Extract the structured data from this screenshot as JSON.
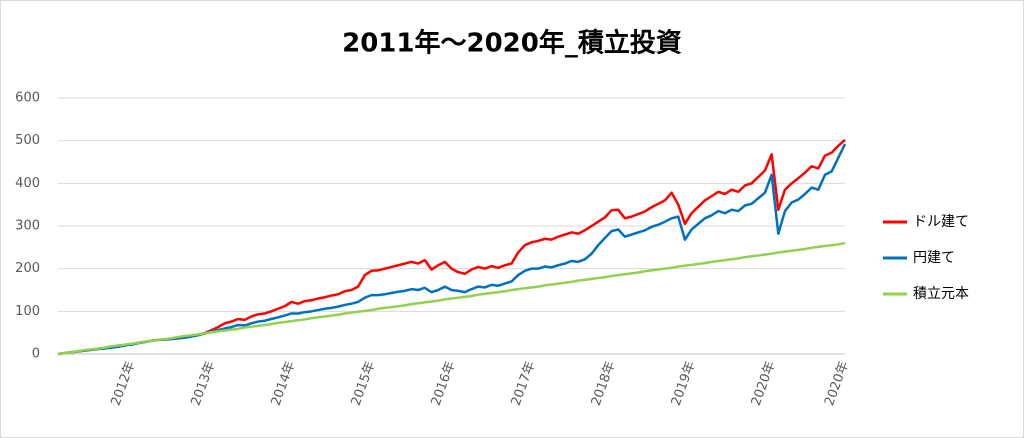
{
  "chart_data": {
    "type": "line",
    "title": "2011年～2020年_積立投資",
    "categories": [
      null,
      null,
      null,
      null,
      null,
      null,
      null,
      null,
      null,
      null,
      null,
      "2012年",
      null,
      null,
      null,
      null,
      null,
      null,
      null,
      null,
      null,
      null,
      null,
      "2013年",
      null,
      null,
      null,
      null,
      null,
      null,
      null,
      null,
      null,
      null,
      null,
      "2014年",
      null,
      null,
      null,
      null,
      null,
      null,
      null,
      null,
      null,
      null,
      null,
      "2015年",
      null,
      null,
      null,
      null,
      null,
      null,
      null,
      null,
      null,
      null,
      null,
      "2016年",
      null,
      null,
      null,
      null,
      null,
      null,
      null,
      null,
      null,
      null,
      null,
      "2017年",
      null,
      null,
      null,
      null,
      null,
      null,
      null,
      null,
      null,
      null,
      null,
      "2018年",
      null,
      null,
      null,
      null,
      null,
      null,
      null,
      null,
      null,
      null,
      null,
      "2019年",
      null,
      null,
      null,
      null,
      null,
      null,
      null,
      null,
      null,
      null,
      null,
      "2020年",
      null,
      null,
      null,
      null,
      null,
      null,
      null,
      null,
      null,
      null,
      "2020年"
    ],
    "series": [
      {
        "name": "ドル建て",
        "color": "#ff0000",
        "values": [
          0,
          2,
          4,
          6,
          8,
          10,
          12,
          13,
          16,
          18,
          21,
          23,
          26,
          28,
          31,
          33,
          34,
          35,
          37,
          39,
          42,
          45,
          49,
          56,
          63,
          72,
          76,
          82,
          80,
          88,
          93,
          95,
          100,
          106,
          112,
          122,
          118,
          124,
          126,
          130,
          133,
          137,
          140,
          147,
          150,
          158,
          185,
          195,
          196,
          200,
          204,
          208,
          212,
          216,
          212,
          220,
          198,
          208,
          216,
          200,
          192,
          188,
          198,
          204,
          200,
          206,
          202,
          208,
          212,
          238,
          255,
          262,
          265,
          270,
          268,
          275,
          280,
          285,
          282,
          290,
          300,
          310,
          320,
          337,
          338,
          318,
          322,
          328,
          334,
          344,
          352,
          360,
          378,
          350,
          305,
          330,
          345,
          360,
          370,
          380,
          375,
          385,
          380,
          395,
          400,
          415,
          430,
          468,
          338,
          385,
          400,
          412,
          425,
          440,
          435,
          465,
          472,
          488,
          502
        ]
      },
      {
        "name": "円建て",
        "color": "#0070c0",
        "values": [
          0,
          2,
          4,
          6,
          8,
          10,
          12,
          13,
          15,
          17,
          20,
          22,
          25,
          28,
          31,
          33,
          34,
          35,
          37,
          38,
          41,
          44,
          48,
          53,
          56,
          60,
          63,
          68,
          67,
          72,
          76,
          78,
          82,
          86,
          90,
          95,
          95,
          98,
          100,
          103,
          106,
          108,
          111,
          115,
          118,
          122,
          132,
          138,
          138,
          140,
          143,
          146,
          148,
          152,
          150,
          155,
          145,
          150,
          158,
          150,
          148,
          145,
          152,
          158,
          156,
          162,
          160,
          165,
          170,
          185,
          195,
          200,
          200,
          205,
          203,
          208,
          212,
          218,
          216,
          222,
          235,
          255,
          272,
          288,
          292,
          275,
          280,
          285,
          290,
          298,
          303,
          310,
          318,
          322,
          268,
          292,
          305,
          318,
          325,
          335,
          330,
          338,
          335,
          348,
          352,
          365,
          378,
          420,
          282,
          335,
          355,
          362,
          375,
          390,
          385,
          420,
          428,
          460,
          492
        ]
      },
      {
        "name": "積立元本",
        "color": "#92d050",
        "values": [
          0,
          2,
          4,
          7,
          9,
          11,
          13,
          15,
          18,
          20,
          22,
          24,
          26,
          29,
          31,
          33,
          35,
          37,
          40,
          42,
          44,
          46,
          48,
          51,
          53,
          55,
          57,
          59,
          62,
          64,
          66,
          68,
          70,
          73,
          75,
          77,
          79,
          81,
          84,
          86,
          88,
          90,
          92,
          95,
          97,
          99,
          101,
          103,
          106,
          108,
          110,
          112,
          114,
          117,
          119,
          121,
          123,
          125,
          128,
          130,
          132,
          134,
          136,
          139,
          141,
          143,
          145,
          147,
          150,
          152,
          154,
          156,
          158,
          161,
          163,
          165,
          167,
          169,
          172,
          174,
          176,
          178,
          180,
          183,
          185,
          187,
          189,
          191,
          194,
          196,
          198,
          200,
          202,
          205,
          207,
          209,
          211,
          213,
          216,
          218,
          220,
          222,
          224,
          227,
          229,
          231,
          233,
          235,
          238,
          240,
          242,
          244,
          246,
          249,
          251,
          253,
          255,
          257,
          260
        ]
      }
    ],
    "ylim": [
      0,
      600
    ],
    "yticks": [
      0,
      100,
      200,
      300,
      400,
      500,
      600
    ],
    "grid": true,
    "legend": "right"
  }
}
